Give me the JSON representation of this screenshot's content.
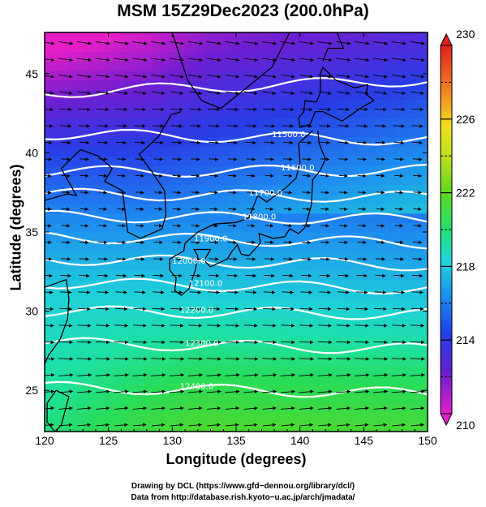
{
  "chart_data": {
    "type": "heatmap",
    "title": "MSM 15Z29Dec2023 (200.0hPa)",
    "xlabel": "Longitude (degrees)",
    "ylabel": "Latitude  (degrees)",
    "xlim": [
      120,
      150
    ],
    "ylim": [
      22.4,
      47.6
    ],
    "x_ticks": [
      "120",
      "125",
      "130",
      "135",
      "140",
      "145",
      "150"
    ],
    "y_ticks": [
      "25",
      "30",
      "35",
      "40",
      "45"
    ],
    "colorbar": {
      "range": [
        210,
        230
      ],
      "tick_labels": [
        "210",
        "214",
        "218",
        "222",
        "226",
        "230"
      ]
    },
    "contours": [
      {
        "label": "11500.0",
        "lat_west": 43.8,
        "lat_east": 44.6
      },
      {
        "label": "11500.0",
        "lat_west": 41.2,
        "lat_east": 40.8
      },
      {
        "label": "11600.0",
        "lat_west": 38.8,
        "lat_east": 38.9
      },
      {
        "label": "11700.0",
        "lat_west": 37.4,
        "lat_east": 37.2
      },
      {
        "label": "11800.0",
        "lat_west": 36.0,
        "lat_east": 35.8
      },
      {
        "label": "11900.0",
        "lat_west": 34.7,
        "lat_east": 34.3
      },
      {
        "label": "12000.0",
        "lat_west": 33.3,
        "lat_east": 32.9
      },
      {
        "label": "12100.0",
        "lat_west": 31.8,
        "lat_east": 31.4
      },
      {
        "label": "12200.0",
        "lat_west": 30.0,
        "lat_east": 29.8
      },
      {
        "label": "12300.0",
        "lat_west": 28.0,
        "lat_east": 27.6
      },
      {
        "label": "12400.0",
        "lat_west": 25.2,
        "lat_east": 24.8
      }
    ],
    "credits": [
      "Drawing by DCL (https://www.gfd−dennou.org/library/dcl/)",
      "Data from http://database.rish.kyoto−u.ac.jp/arch/jmadata/"
    ]
  }
}
